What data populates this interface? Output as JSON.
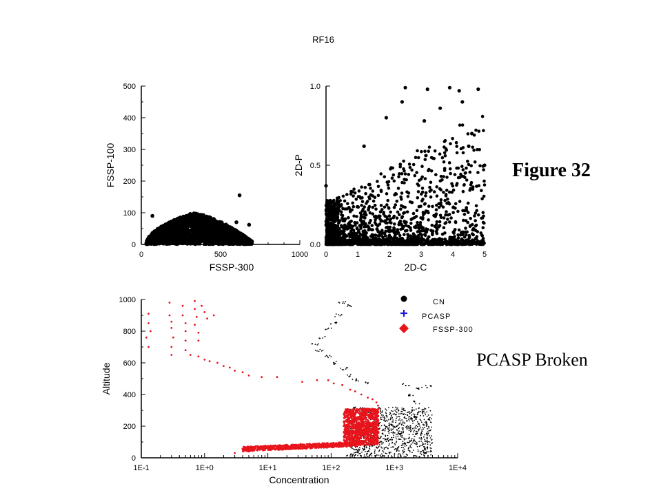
{
  "title": "RF16",
  "figure_label": "Figure 32",
  "note": "PCASP Broken",
  "colors": {
    "black": "#000000",
    "red": "#e8141c",
    "blue": "#1a1ad6"
  },
  "chart_data": [
    {
      "id": "fssp",
      "type": "scatter",
      "xlabel": "FSSP-300",
      "ylabel": "FSSP-100",
      "xlim": [
        0,
        1000
      ],
      "ylim": [
        0,
        500
      ],
      "xticks": [
        "0",
        "500",
        "1000"
      ],
      "yticks": [
        "0",
        "100",
        "200",
        "300",
        "400",
        "500"
      ],
      "cloud": {
        "x_range": [
          30,
          700
        ],
        "peak_x": 320,
        "max_y": 100
      },
      "points": [
        [
          620,
          155
        ],
        [
          70,
          90
        ],
        [
          680,
          62
        ],
        [
          600,
          70
        ]
      ]
    },
    {
      "id": "twod",
      "type": "scatter",
      "xlabel": "2D-C",
      "ylabel": "2D-P",
      "xlim": [
        0,
        5
      ],
      "ylim": [
        0,
        1
      ],
      "xticks": [
        "0",
        "1",
        "2",
        "3",
        "4",
        "5"
      ],
      "yticks": [
        "0.0",
        "0.5",
        "1.0"
      ],
      "points": [
        [
          2.5,
          0.99
        ],
        [
          3.2,
          0.98
        ],
        [
          3.9,
          0.99
        ],
        [
          4.8,
          0.98
        ],
        [
          4.2,
          0.97
        ],
        [
          2.4,
          0.9
        ],
        [
          3.6,
          0.86
        ],
        [
          4.3,
          0.9
        ],
        [
          1.9,
          0.8
        ],
        [
          3.1,
          0.78
        ],
        [
          4.6,
          0.7
        ],
        [
          5.0,
          0.5
        ],
        [
          0.0,
          0.37
        ],
        [
          4.5,
          0.62
        ],
        [
          1.2,
          0.62
        ]
      ]
    },
    {
      "id": "altitude",
      "type": "scatter",
      "xlabel": "Concentration",
      "ylabel": "Altitude",
      "xscale": "log",
      "xlim": [
        0.1,
        10000
      ],
      "ylim": [
        0,
        1000
      ],
      "xticks": [
        "1E-1",
        "1E+0",
        "1E+1",
        "1E+2",
        "1E+3",
        "1E+4"
      ],
      "yticks": [
        "0",
        "200",
        "400",
        "600",
        "800",
        "1000"
      ],
      "legend": {
        "position": "top-right",
        "entries": [
          {
            "label": "CN",
            "marker": "circle",
            "color": "#000000"
          },
          {
            "label": "PCASP",
            "marker": "plus",
            "color": "#1a1ad6"
          },
          {
            "label": "FSSP-300",
            "marker": "diamond",
            "color": "#e8141c"
          }
        ]
      },
      "series": [
        {
          "name": "CN",
          "color": "#000000",
          "points": [
            [
              150,
              980
            ],
            [
              200,
              960
            ],
            [
              130,
              900
            ],
            [
              110,
              850
            ],
            [
              90,
              810
            ],
            [
              70,
              760
            ],
            [
              55,
              720
            ],
            [
              65,
              680
            ],
            [
              90,
              640
            ],
            [
              120,
              600
            ],
            [
              160,
              560
            ],
            [
              200,
              520
            ],
            [
              250,
              490
            ],
            [
              350,
              470
            ],
            [
              1500,
              460
            ],
            [
              2500,
              440
            ],
            [
              3500,
              450
            ],
            [
              1800,
              400
            ],
            [
              2200,
              350
            ],
            [
              1200,
              300
            ],
            [
              1600,
              280
            ],
            [
              2000,
              250
            ],
            [
              1300,
              220
            ],
            [
              1000,
              200
            ],
            [
              1800,
              180
            ],
            [
              1200,
              150
            ],
            [
              800,
              120
            ],
            [
              600,
              100
            ],
            [
              400,
              80
            ],
            [
              300,
              60
            ],
            [
              250,
              40
            ],
            [
              200,
              20
            ]
          ]
        },
        {
          "name": "FSSP-300",
          "color": "#e8141c",
          "points": [
            [
              0.13,
              910
            ],
            [
              0.13,
              850
            ],
            [
              0.14,
              800
            ],
            [
              0.12,
              760
            ],
            [
              0.13,
              700
            ],
            [
              0.28,
              980
            ],
            [
              0.28,
              900
            ],
            [
              0.3,
              860
            ],
            [
              0.3,
              820
            ],
            [
              0.32,
              760
            ],
            [
              0.3,
              700
            ],
            [
              0.3,
              650
            ],
            [
              0.45,
              960
            ],
            [
              0.45,
              900
            ],
            [
              0.5,
              850
            ],
            [
              0.5,
              800
            ],
            [
              0.5,
              740
            ],
            [
              0.5,
              680
            ],
            [
              0.7,
              990
            ],
            [
              0.7,
              940
            ],
            [
              0.75,
              890
            ],
            [
              0.7,
              840
            ],
            [
              0.8,
              790
            ],
            [
              0.8,
              740
            ],
            [
              0.9,
              960
            ],
            [
              1.0,
              920
            ],
            [
              1.1,
              880
            ],
            [
              1.4,
              900
            ],
            [
              0.6,
              650
            ],
            [
              0.8,
              640
            ],
            [
              1.0,
              620
            ],
            [
              1.2,
              610
            ],
            [
              1.6,
              600
            ],
            [
              2.0,
              580
            ],
            [
              2.5,
              570
            ],
            [
              3,
              550
            ],
            [
              4,
              540
            ],
            [
              5,
              520
            ],
            [
              8,
              510
            ],
            [
              14,
              510
            ],
            [
              35,
              480
            ],
            [
              60,
              490
            ],
            [
              90,
              490
            ],
            [
              110,
              470
            ],
            [
              150,
              460
            ],
            [
              200,
              430
            ],
            [
              240,
              420
            ],
            [
              300,
              400
            ],
            [
              380,
              380
            ],
            [
              450,
              370
            ],
            [
              520,
              350
            ],
            [
              550,
              330
            ],
            [
              500,
              300
            ],
            [
              450,
              270
            ],
            [
              400,
              250
            ],
            [
              350,
              230
            ],
            [
              300,
              210
            ],
            [
              260,
              200
            ],
            [
              300,
              180
            ],
            [
              350,
              160
            ],
            [
              300,
              140
            ],
            [
              250,
              120
            ],
            [
              200,
              100
            ],
            [
              150,
              90
            ],
            [
              100,
              85
            ],
            [
              60,
              80
            ],
            [
              30,
              75
            ],
            [
              15,
              70
            ],
            [
              8,
              55
            ],
            [
              5,
              40
            ],
            [
              3,
              30
            ],
            [
              10,
              60
            ],
            [
              20,
              65
            ],
            [
              50,
              70
            ],
            [
              80,
              75
            ]
          ]
        }
      ]
    }
  ]
}
